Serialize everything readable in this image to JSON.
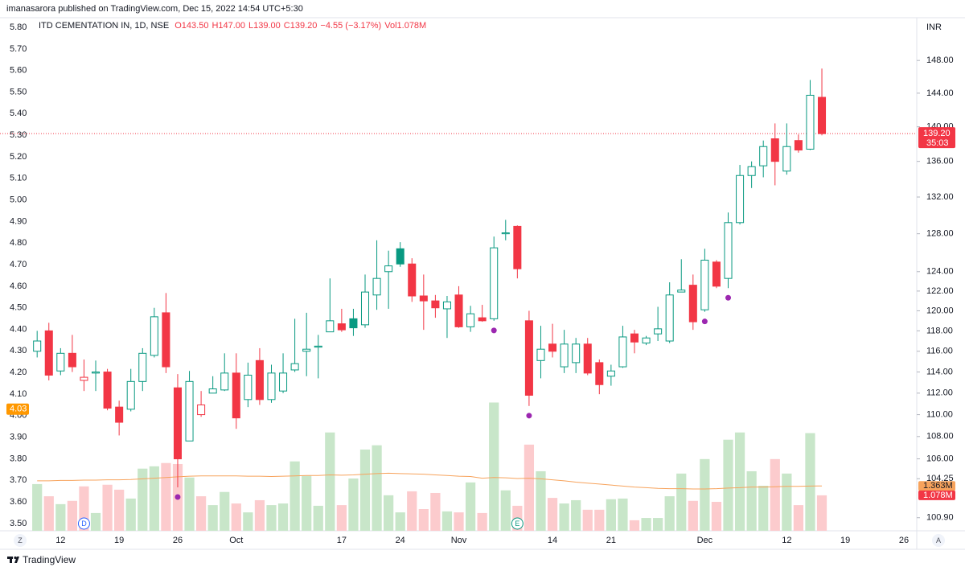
{
  "chart_data": {
    "type": "candlestick",
    "header": "imanasarora published on TradingView.com, Dec 15, 2022 14:54 UTC+5:30",
    "title": "ITD CEMENTATION IN, 1D, NSE",
    "legend_values": [
      "O143.50",
      "H147.00",
      "L139.00",
      "C139.20",
      "−4.55 (−3.17%)",
      "Vol1.078M"
    ],
    "currency": "INR",
    "colors": {
      "up": "#089981",
      "down": "#f23645"
    },
    "x": [
      0,
      1,
      2,
      3,
      4,
      5,
      6,
      7,
      8,
      9,
      10,
      11,
      12,
      13,
      14,
      15,
      16,
      17,
      18,
      19,
      20,
      21,
      22,
      23,
      24,
      25,
      26,
      27,
      28,
      29,
      30,
      31,
      32,
      33,
      34,
      35,
      36,
      37,
      38,
      39,
      40,
      41,
      42,
      43,
      44,
      45,
      46,
      47,
      48,
      49,
      50,
      51,
      52,
      53,
      54,
      55,
      56,
      57,
      58,
      59,
      60,
      61,
      62,
      63,
      64,
      65,
      66,
      67
    ],
    "open": [
      116,
      118,
      114.1,
      115.8,
      113.2,
      113.9,
      114.0,
      110.7,
      110.5,
      113.1,
      115.6,
      119.8,
      112.5,
      107.6,
      110.0,
      112.0,
      112.3,
      113.9,
      111.4,
      115.1,
      111.4,
      112.2,
      114.2,
      116.0,
      116.4,
      117.9,
      118.7,
      119.2,
      118.6,
      121.6,
      124.0,
      126.4,
      124.8,
      121.5,
      121.0,
      120.2,
      121.6,
      118.4,
      119.3,
      119.2,
      128.0,
      128.8,
      119.0,
      115.1,
      116.7,
      114.5,
      114.9,
      116.7,
      114.9,
      113.6,
      114.5,
      117.7,
      116.8,
      117.7,
      117.0,
      121.9,
      122.6,
      120.1,
      125.0,
      123.3,
      129.2,
      134.4,
      135.5,
      138.6,
      134.9,
      138.4,
      137.4,
      143.5
    ],
    "high": [
      118,
      118.8,
      116.3,
      117.6,
      115.2,
      115.1,
      114.3,
      111.3,
      114.3,
      116.3,
      120.3,
      121.8,
      113.8,
      114.1,
      112.2,
      113.6,
      115.8,
      115.8,
      114.9,
      116.3,
      114.7,
      115.8,
      119.2,
      119.8,
      117.6,
      123.3,
      120.2,
      120.2,
      123.7,
      127.3,
      126.2,
      127.1,
      125.4,
      123.7,
      121.6,
      121.5,
      122.5,
      120.5,
      120.6,
      127.7,
      129.5,
      128.9,
      120.0,
      118.5,
      118.7,
      118.1,
      117.3,
      117.3,
      115.2,
      114.7,
      118.5,
      118.1,
      117.5,
      120.4,
      122.9,
      125.3,
      123.7,
      126.4,
      125.2,
      130.3,
      135.6,
      136.0,
      138.4,
      140.4,
      140.4,
      139.1,
      145.6,
      147.0
    ],
    "low": [
      115.4,
      113.2,
      113.7,
      114.0,
      112.2,
      112.2,
      110.4,
      108.1,
      110.3,
      112.2,
      115.4,
      113.9,
      103.5,
      107.6,
      109.8,
      112.0,
      112.2,
      108.7,
      110.7,
      110.9,
      111.1,
      112.0,
      114.0,
      113.6,
      113.4,
      117.9,
      117.9,
      117.5,
      118.3,
      120.1,
      120.2,
      124.5,
      120.9,
      118.1,
      119.3,
      117.3,
      118.3,
      117.9,
      118.9,
      119.0,
      127.3,
      123.3,
      110.8,
      113.4,
      115.4,
      113.9,
      113.9,
      113.7,
      111.9,
      112.7,
      114.4,
      115.8,
      116.6,
      117.0,
      116.8,
      121.9,
      118.1,
      119.9,
      122.3,
      122.3,
      129.0,
      133.0,
      134.2,
      133.3,
      134.5,
      137.0,
      137.3,
      139.0
    ],
    "close": [
      117,
      113.7,
      115.8,
      114.5,
      113.5,
      114.0,
      110.6,
      109.3,
      113.1,
      115.8,
      119.4,
      114.5,
      106.0,
      113.1,
      110.9,
      112.4,
      113.9,
      109.7,
      113.7,
      111.4,
      113.9,
      113.9,
      114.8,
      116.2,
      116.5,
      119.0,
      118.1,
      118.3,
      121.9,
      123.3,
      124.6,
      124.8,
      121.5,
      121.0,
      120.3,
      120.9,
      118.4,
      119.7,
      119.0,
      126.5,
      128.1,
      124.3,
      111.8,
      116.2,
      116.0,
      116.7,
      116.7,
      113.9,
      112.8,
      114.1,
      117.4,
      116.9,
      117.3,
      118.2,
      121.6,
      122.1,
      118.9,
      125.2,
      122.5,
      129.2,
      134.4,
      135.4,
      137.7,
      136.0,
      137.7,
      137.3,
      143.75,
      139.2
    ],
    "xlim": [
      -0.7,
      75.1
    ],
    "xticks": [
      {
        "value": 2,
        "label": "12"
      },
      {
        "value": 7,
        "label": "19"
      },
      {
        "value": 12,
        "label": "26"
      },
      {
        "value": 17,
        "label": "Oct"
      },
      {
        "value": 26,
        "label": "17"
      },
      {
        "value": 31,
        "label": "24"
      },
      {
        "value": 36,
        "label": "Nov"
      },
      {
        "value": 44,
        "label": "14"
      },
      {
        "value": 49,
        "label": "21"
      },
      {
        "value": 57,
        "label": "Dec"
      },
      {
        "value": 64,
        "label": "12"
      },
      {
        "value": 69,
        "label": "19"
      },
      {
        "value": 74,
        "label": "26"
      }
    ],
    "ylim": [
      99.8,
      153.4
    ],
    "log_scale": true,
    "yticks": [
      {
        "value": 148,
        "label": "148.00"
      },
      {
        "value": 144,
        "label": "144.00"
      },
      {
        "value": 140,
        "label": "140.00"
      },
      {
        "value": 136,
        "label": "136.00"
      },
      {
        "value": 132,
        "label": "132.00"
      },
      {
        "value": 128,
        "label": "128.00"
      },
      {
        "value": 124,
        "label": "124.00"
      },
      {
        "value": 122,
        "label": "122.00"
      },
      {
        "value": 120,
        "label": "120.00"
      },
      {
        "value": 118,
        "label": "118.00"
      },
      {
        "value": 116,
        "label": "116.00"
      },
      {
        "value": 114,
        "label": "114.00"
      },
      {
        "value": 112,
        "label": "112.00"
      },
      {
        "value": 110,
        "label": "110.00"
      },
      {
        "value": 108,
        "label": "108.00"
      },
      {
        "value": 106,
        "label": "106.00"
      },
      104.25,
      {
        "value": 100.9,
        "label": "100.90"
      }
    ],
    "y2lim": [
      3.466,
      5.845
    ],
    "y2ticks": [
      {
        "value": 5.8,
        "label": "5.80"
      },
      {
        "value": 5.7,
        "label": "5.70"
      },
      {
        "value": 5.6,
        "label": "5.60"
      },
      {
        "value": 5.5,
        "label": "5.50"
      },
      {
        "value": 5.4,
        "label": "5.40"
      },
      {
        "value": 5.3,
        "label": "5.30"
      },
      {
        "value": 5.2,
        "label": "5.20"
      },
      {
        "value": 5.1,
        "label": "5.10"
      },
      {
        "value": 5.0,
        "label": "5.00"
      },
      {
        "value": 4.9,
        "label": "4.90"
      },
      {
        "value": 4.8,
        "label": "4.80"
      },
      {
        "value": 4.7,
        "label": "4.70"
      },
      {
        "value": 4.6,
        "label": "4.60"
      },
      {
        "value": 4.5,
        "label": "4.50"
      },
      {
        "value": 4.4,
        "label": "4.40"
      },
      {
        "value": 4.3,
        "label": "4.30"
      },
      {
        "value": 4.2,
        "label": "4.20"
      },
      {
        "value": 4.1,
        "label": "4.10"
      },
      {
        "value": 4.0,
        "label": "4.00"
      },
      {
        "value": 3.9,
        "label": "3.90"
      },
      {
        "value": 3.8,
        "label": "3.80"
      },
      {
        "value": 3.7,
        "label": "3.70"
      },
      {
        "value": 3.6,
        "label": "3.60"
      },
      {
        "value": 3.5,
        "label": "3.50"
      }
    ],
    "y2_marker": 4.03,
    "y2_marker_color": "#ff9800",
    "last_price": {
      "value": 139.2,
      "label": "139.20"
    },
    "countdown": "35:03",
    "volume": {
      "values": [
        1.42,
        1.05,
        0.81,
        0.91,
        1.35,
        0.54,
        1.4,
        1.25,
        0.98,
        1.89,
        1.96,
        2.06,
        2.03,
        1.62,
        1.05,
        0.78,
        1.18,
        0.83,
        0.56,
        0.93,
        0.78,
        0.83,
        2.11,
        1.67,
        0.76,
        2.99,
        0.78,
        1.59,
        2.47,
        2.6,
        1.08,
        0.56,
        1.2,
        0.66,
        1.15,
        0.59,
        0.56,
        1.47,
        0.54,
        3.9,
        1.23,
        0.76,
        2.62,
        1.81,
        1.0,
        0.83,
        0.93,
        0.64,
        0.64,
        0.96,
        0.98,
        0.32,
        0.39,
        0.39,
        1.05,
        1.74,
        0.91,
        2.18,
        0.88,
        2.77,
        2.99,
        1.81,
        1.37,
        2.18,
        1.74,
        0.78,
        2.97,
        1.078
      ],
      "ylim": [
        0,
        15.6
      ],
      "colors": {
        "up": "#c8e6c9",
        "down": "#fccbcd"
      },
      "ma": [
        1.52,
        1.52,
        1.53,
        1.53,
        1.54,
        1.54,
        1.55,
        1.55,
        1.56,
        1.58,
        1.6,
        1.62,
        1.64,
        1.66,
        1.67,
        1.67,
        1.67,
        1.67,
        1.66,
        1.66,
        1.65,
        1.66,
        1.67,
        1.68,
        1.68,
        1.7,
        1.69,
        1.7,
        1.72,
        1.74,
        1.75,
        1.74,
        1.73,
        1.72,
        1.7,
        1.68,
        1.66,
        1.65,
        1.6,
        1.62,
        1.61,
        1.59,
        1.6,
        1.58,
        1.55,
        1.52,
        1.48,
        1.45,
        1.42,
        1.39,
        1.36,
        1.33,
        1.31,
        1.29,
        1.28,
        1.28,
        1.27,
        1.27,
        1.28,
        1.3,
        1.31,
        1.33,
        1.33,
        1.34,
        1.35,
        1.35,
        1.36,
        1.363
      ],
      "ma_color": "#f7a35c",
      "ma_last": {
        "value": 1.363,
        "label": "1.363M"
      },
      "last": {
        "value": 1.078,
        "label": "1.078M"
      }
    },
    "signal_markers": [
      12,
      39,
      42,
      57,
      59
    ],
    "signal_color": "#9c27b0",
    "events": [
      {
        "label": "D",
        "x": 4,
        "color": "#2962ff"
      },
      {
        "label": "E",
        "x": 41,
        "color": "#089981"
      }
    ],
    "grid": false,
    "axis_buttons": [
      "Z",
      "A"
    ],
    "footer": "TradingView"
  }
}
